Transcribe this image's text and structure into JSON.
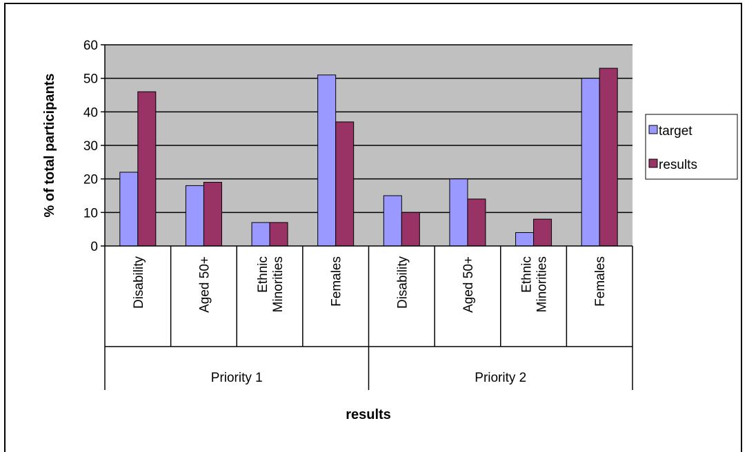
{
  "chart_data": {
    "type": "bar",
    "xlabel": "results",
    "ylabel": "% of total participants",
    "ylim": [
      0,
      60
    ],
    "yticks": [
      0,
      10,
      20,
      30,
      40,
      50,
      60
    ],
    "grid": true,
    "legend_position": "right",
    "groups": [
      {
        "label": "Priority 1",
        "categories": [
          "Disability",
          "Aged 50+",
          "Ethnic Minorities",
          "Females"
        ]
      },
      {
        "label": "Priority 2",
        "categories": [
          "Disability",
          "Aged 50+",
          "Ethnic Minorities",
          "Females"
        ]
      }
    ],
    "categories": [
      [
        "Disability"
      ],
      [
        "Aged 50+"
      ],
      [
        "Ethnic",
        "Minorities"
      ],
      [
        "Females"
      ],
      [
        "Disability"
      ],
      [
        "Aged 50+"
      ],
      [
        "Ethnic",
        "Minorities"
      ],
      [
        "Females"
      ]
    ],
    "series": [
      {
        "name": "target",
        "color": "#9999ff",
        "values": [
          22,
          18,
          7,
          51,
          15,
          20,
          4,
          50
        ]
      },
      {
        "name": "results",
        "color": "#993366",
        "values": [
          46,
          19,
          7,
          37,
          10,
          14,
          8,
          53
        ]
      }
    ],
    "plot_background": "#c0c0c0"
  }
}
